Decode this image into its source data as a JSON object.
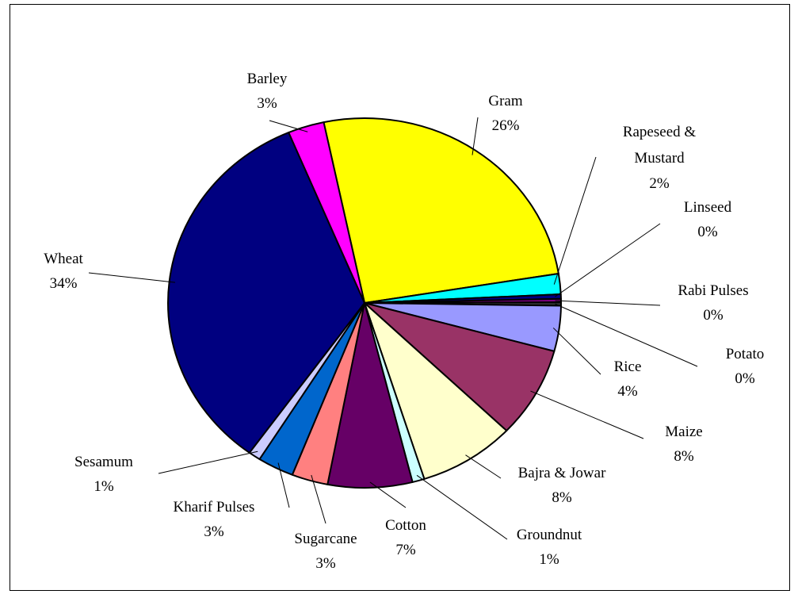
{
  "chart_data": {
    "type": "pie",
    "categories": [
      "Gram",
      "Rapeseed & Mustard",
      "Linseed",
      "Rabi Pulses",
      "Potato",
      "Rice",
      "Maize",
      "Bajra & Jowar",
      "Groundnut",
      "Cotton",
      "Sugarcane",
      "Kharif Pulses",
      "Sesamum",
      "Wheat",
      "Barley"
    ],
    "values": [
      26,
      1.8,
      0.4,
      0.3,
      0.3,
      4,
      8,
      8,
      1,
      7,
      3,
      3,
      1,
      34,
      3
    ],
    "value_labels": [
      "26%",
      "2%",
      "0%",
      "0%",
      "0%",
      "4%",
      "8%",
      "8%",
      "1%",
      "7%",
      "3%",
      "3%",
      "1%",
      "34%",
      "3%"
    ],
    "colors": [
      "#ffff00",
      "#00ffff",
      "#000080",
      "#800080",
      "#333333",
      "#9999ff",
      "#993366",
      "#ffffcc",
      "#ccffff",
      "#660066",
      "#ff8080",
      "#0066cc",
      "#ccccff",
      "#000080",
      "#ff00ff"
    ]
  }
}
